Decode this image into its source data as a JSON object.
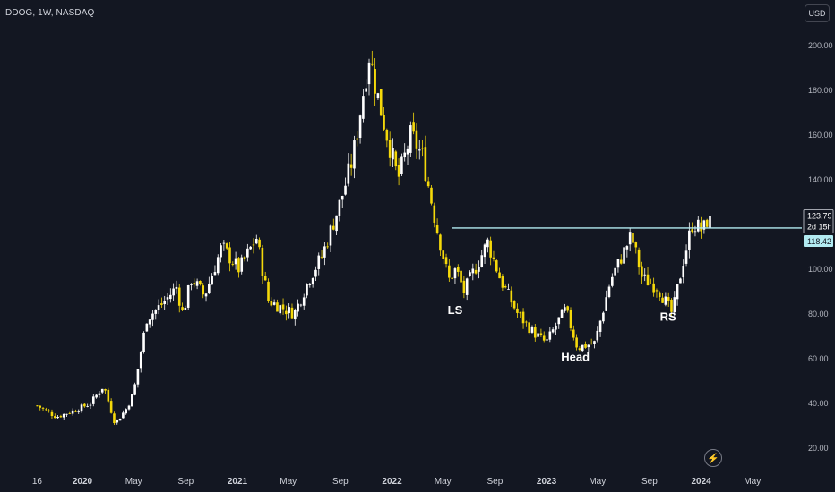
{
  "header": {
    "symbol": "DDOG, 1W, NASDAQ",
    "currency": "USD"
  },
  "chart_data": {
    "type": "candlestick",
    "timeframe": "1W",
    "exchange": "NASDAQ",
    "ticker": "DDOG",
    "ylim": [
      13,
      208
    ],
    "y_ticks": [
      "20.00",
      "40.00",
      "60.00",
      "80.00",
      "100.00",
      "120.00",
      "140.00",
      "160.00",
      "180.00",
      "200.00"
    ],
    "x_ticks": [
      {
        "label": "16",
        "date": "2019-09-16",
        "major": false
      },
      {
        "label": "2020",
        "date": "2020-01-01",
        "major": true
      },
      {
        "label": "May",
        "date": "2020-05-01",
        "major": false
      },
      {
        "label": "Sep",
        "date": "2020-09-01",
        "major": false
      },
      {
        "label": "2021",
        "date": "2021-01-01",
        "major": true
      },
      {
        "label": "May",
        "date": "2021-05-01",
        "major": false
      },
      {
        "label": "Sep",
        "date": "2021-09-01",
        "major": false
      },
      {
        "label": "2022",
        "date": "2022-01-01",
        "major": true
      },
      {
        "label": "May",
        "date": "2022-05-01",
        "major": false
      },
      {
        "label": "Sep",
        "date": "2022-09-01",
        "major": false
      },
      {
        "label": "2023",
        "date": "2023-01-01",
        "major": true
      },
      {
        "label": "May",
        "date": "2023-05-01",
        "major": false
      },
      {
        "label": "Sep",
        "date": "2023-09-01",
        "major": false
      },
      {
        "label": "2024",
        "date": "2024-01-01",
        "major": true
      },
      {
        "label": "May",
        "date": "2024-05-01",
        "major": false
      }
    ],
    "price_path": [
      [
        "2019-09-16",
        39
      ],
      [
        "2019-11-01",
        34
      ],
      [
        "2019-12-15",
        37
      ],
      [
        "2020-01-20",
        40
      ],
      [
        "2020-02-20",
        48
      ],
      [
        "2020-03-18",
        31
      ],
      [
        "2020-04-15",
        38
      ],
      [
        "2020-05-01",
        45
      ],
      [
        "2020-06-01",
        78
      ],
      [
        "2020-07-10",
        85
      ],
      [
        "2020-08-10",
        92
      ],
      [
        "2020-08-25",
        80
      ],
      [
        "2020-09-15",
        96
      ],
      [
        "2020-10-15",
        88
      ],
      [
        "2020-11-25",
        110
      ],
      [
        "2021-01-05",
        100
      ],
      [
        "2021-02-15",
        114
      ],
      [
        "2021-03-15",
        86
      ],
      [
        "2021-05-15",
        80
      ],
      [
        "2021-06-20",
        96
      ],
      [
        "2021-07-20",
        106
      ],
      [
        "2021-09-01",
        130
      ],
      [
        "2021-10-01",
        150
      ],
      [
        "2021-11-08",
        196
      ],
      [
        "2021-12-01",
        175
      ],
      [
        "2022-01-15",
        140
      ],
      [
        "2022-02-15",
        160
      ],
      [
        "2022-03-15",
        150
      ],
      [
        "2022-04-15",
        120
      ],
      [
        "2022-05-15",
        95
      ],
      [
        "2022-06-01",
        100
      ],
      [
        "2022-06-20",
        90
      ],
      [
        "2022-08-15",
        112
      ],
      [
        "2022-09-15",
        95
      ],
      [
        "2022-10-25",
        80
      ],
      [
        "2022-11-30",
        72
      ],
      [
        "2022-12-31",
        67
      ],
      [
        "2023-02-01",
        78
      ],
      [
        "2023-02-15",
        82
      ],
      [
        "2023-03-15",
        65
      ],
      [
        "2023-04-25",
        67
      ],
      [
        "2023-06-01",
        95
      ],
      [
        "2023-07-20",
        115
      ],
      [
        "2023-08-15",
        96
      ],
      [
        "2023-09-20",
        92
      ],
      [
        "2023-10-25",
        80
      ],
      [
        "2023-11-20",
        104
      ],
      [
        "2023-12-12",
        121
      ],
      [
        "2024-01-05",
        117
      ],
      [
        "2024-01-19",
        123.79
      ]
    ],
    "annotations": [
      {
        "label": "LS",
        "date": "2022-05-30",
        "price": 80
      },
      {
        "label": "Head",
        "date": "2023-03-10",
        "price": 59
      },
      {
        "label": "RS",
        "date": "2023-10-15",
        "price": 77
      }
    ],
    "neckline": {
      "start_date": "2022-05-23",
      "price": 118.42,
      "color": "#b2ebf2"
    },
    "last_price": {
      "value": "123.79",
      "countdown": "2d 15h",
      "color": "#ffffff"
    },
    "neckline_label": {
      "value": "118.42",
      "color": "#b2ebf2"
    },
    "colors": {
      "background": "#131722",
      "up_candle": "#ffffff",
      "down_candle": "#f5d90a",
      "axis_text": "#b2b5be"
    }
  }
}
